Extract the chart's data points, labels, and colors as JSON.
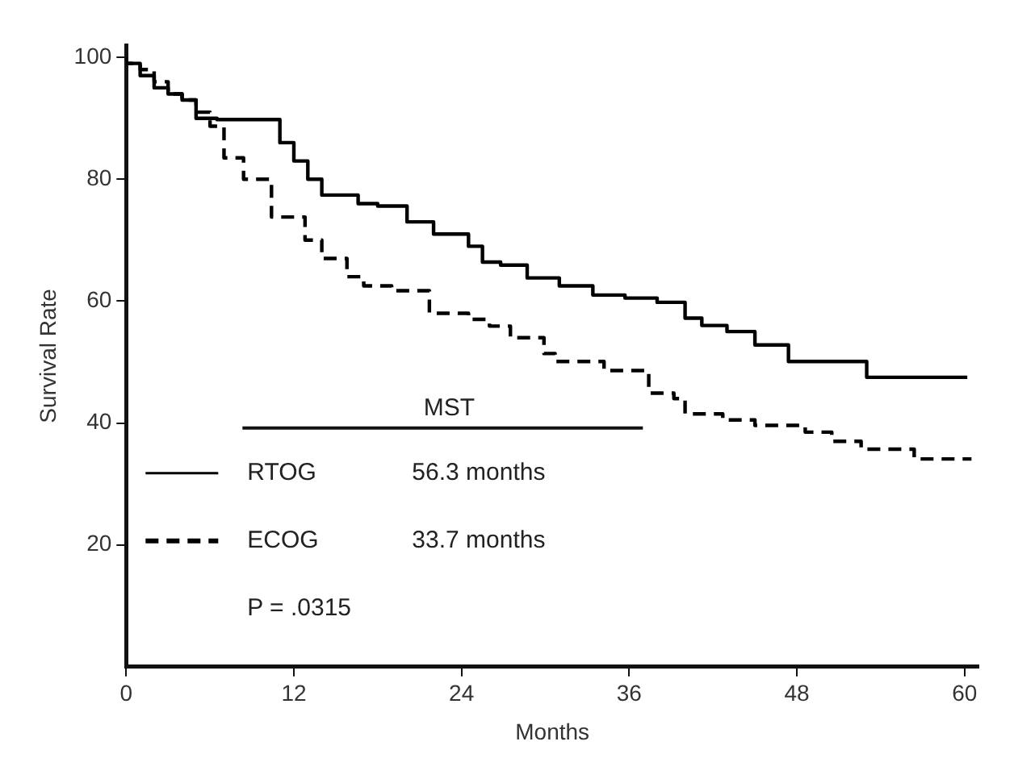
{
  "chart_data": {
    "type": "step",
    "xlabel": "Months",
    "ylabel": "Survival Rate",
    "xlim": [
      0,
      61
    ],
    "ylim": [
      0,
      102
    ],
    "xticks": [
      0,
      12,
      24,
      36,
      48,
      60
    ],
    "yticks": [
      20,
      40,
      60,
      80,
      100
    ],
    "grid": false,
    "legend": "bottom left",
    "annotations": [
      "MST",
      "56.3 months",
      "33.7 months",
      "P = .0315"
    ],
    "series": [
      {
        "name": "RTOG",
        "color": "#000000",
        "line_style": "solid",
        "x": [
          0,
          1,
          2,
          3,
          4,
          5,
          6.5,
          11,
          12,
          13,
          14,
          16.6,
          18,
          20.1,
          22,
          24.5,
          25.5,
          26.8,
          28.7,
          31,
          33.4,
          35.7,
          38,
          40,
          41.2,
          43,
          45,
          47.4,
          50.6,
          53,
          56.4,
          60.2
        ],
        "values": [
          100,
          99,
          97,
          95,
          94,
          93,
          90,
          89.8,
          86,
          83,
          80,
          77.4,
          76,
          75.6,
          73,
          71,
          69,
          66.4,
          65.9,
          63.8,
          62.5,
          61,
          60.5,
          59.8,
          57.2,
          56,
          55,
          52.8,
          50.1,
          50.1,
          47.5,
          47.5
        ]
      },
      {
        "name": "ECOG",
        "color": "#000000",
        "line_style": "dashed",
        "x": [
          0,
          1,
          2,
          3,
          4,
          5,
          6,
          7,
          8.4,
          10.4,
          12.8,
          14,
          15.8,
          17,
          19,
          21.7,
          24.5,
          26,
          27.5,
          29.9,
          30.7,
          34.2,
          37.4,
          39.2,
          40,
          42.7,
          45,
          48.6,
          50.5,
          52.6,
          56.4,
          59.6,
          60.5
        ],
        "values": [
          100,
          99,
          98,
          96,
          94,
          93,
          91,
          88.7,
          83.5,
          80,
          73.8,
          70,
          67,
          64,
          62.5,
          61.7,
          58,
          57,
          55.9,
          54,
          51.4,
          50.1,
          48.6,
          44.9,
          44,
          41.5,
          40.5,
          39.6,
          38.5,
          37,
          35.7,
          34.1,
          34.1
        ]
      }
    ]
  }
}
